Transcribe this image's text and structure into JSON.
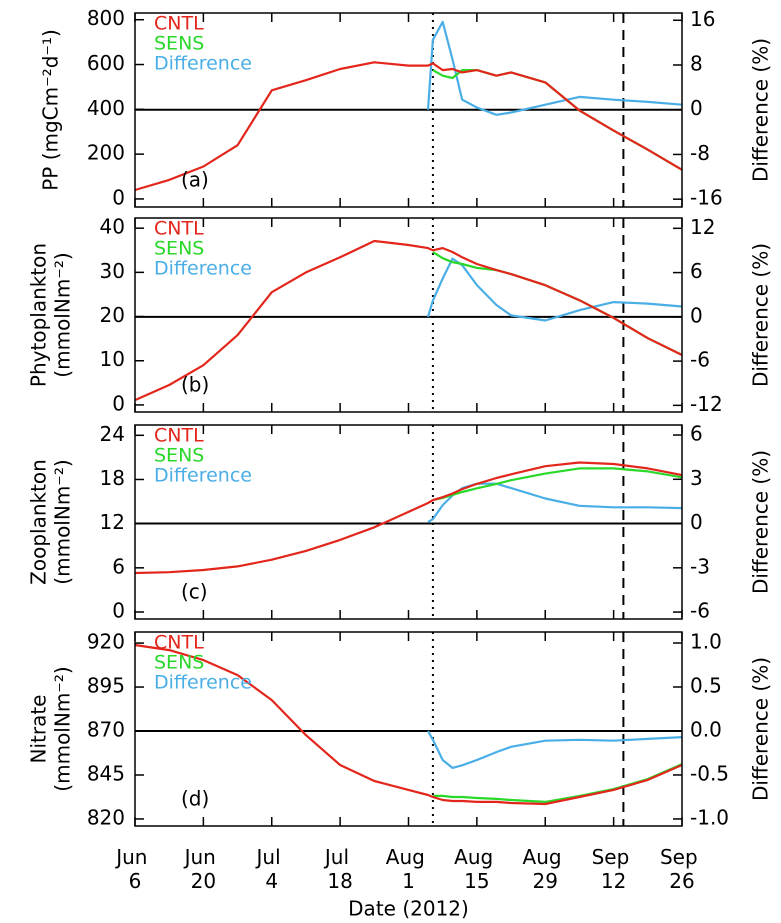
{
  "chart_data": [
    {
      "type": "line",
      "ylabel": [
        "PP (mgCm⁻²d⁻¹)"
      ],
      "y2label": "Difference (%)",
      "annotation": "(a)",
      "x": [
        "2012-06-06",
        "2012-06-13",
        "2012-06-20",
        "2012-06-27",
        "2012-07-04",
        "2012-07-11",
        "2012-07-18",
        "2012-07-25",
        "2012-08-01",
        "2012-08-05",
        "2012-08-06",
        "2012-08-08",
        "2012-08-10",
        "2012-08-12",
        "2012-08-15",
        "2012-08-19",
        "2012-08-22",
        "2012-08-29",
        "2012-09-05",
        "2012-09-12",
        "2012-09-19",
        "2012-09-26"
      ],
      "series": [
        {
          "name": "CNTL",
          "color": "#e3261b",
          "values": [
            40,
            85,
            145,
            240,
            485,
            530,
            580,
            610,
            595,
            595,
            605,
            575,
            580,
            565,
            575,
            550,
            565,
            520,
            395,
            305,
            220,
            130
          ]
        },
        {
          "name": "SENS",
          "color": "#2ad82a",
          "values": [
            null,
            null,
            null,
            null,
            null,
            null,
            null,
            null,
            null,
            null,
            575,
            550,
            540,
            575,
            575,
            550,
            565,
            520,
            395,
            305,
            220,
            130
          ]
        },
        {
          "name": "Difference",
          "color": "#4aaee6",
          "axis": "y2",
          "values": [
            null,
            null,
            null,
            null,
            null,
            null,
            null,
            null,
            null,
            0,
            12.5,
            15.7,
            9,
            1.8,
            0.4,
            -0.9,
            -0.5,
            0.9,
            2.3,
            1.8,
            1.4,
            0.9
          ]
        }
      ],
      "ylim": [
        -36,
        830
      ],
      "yticks": [
        0,
        200,
        400,
        600,
        800
      ],
      "y2lim": [
        -17.4,
        17.3
      ],
      "y2ticks": [
        -16,
        -8,
        0,
        8,
        16
      ],
      "hline": {
        "axis": "y2",
        "value": 0
      },
      "vlines": [
        {
          "x": "2012-08-06",
          "dash": "dotted"
        },
        {
          "x": "2012-09-14",
          "dash": "dashed"
        }
      ]
    },
    {
      "type": "line",
      "ylabel": [
        "Phytoplankton",
        "(mmolNm⁻²)"
      ],
      "y2label": "Difference (%)",
      "annotation": "(b)",
      "x": [
        "2012-06-06",
        "2012-06-13",
        "2012-06-20",
        "2012-06-27",
        "2012-07-04",
        "2012-07-11",
        "2012-07-18",
        "2012-07-25",
        "2012-08-01",
        "2012-08-05",
        "2012-08-06",
        "2012-08-08",
        "2012-08-10",
        "2012-08-12",
        "2012-08-15",
        "2012-08-19",
        "2012-08-22",
        "2012-08-29",
        "2012-09-05",
        "2012-09-12",
        "2012-09-19",
        "2012-09-26"
      ],
      "series": [
        {
          "name": "CNTL",
          "color": "#e3261b",
          "values": [
            1.1,
            4.5,
            9,
            15.8,
            25.5,
            30,
            33.4,
            37.1,
            36.2,
            35.5,
            35,
            35.5,
            34.6,
            33.4,
            31.9,
            30.5,
            29.6,
            27.1,
            23.7,
            19.7,
            15.1,
            11.3
          ]
        },
        {
          "name": "SENS",
          "color": "#2ad82a",
          "values": [
            null,
            null,
            null,
            null,
            null,
            null,
            null,
            null,
            null,
            null,
            34.6,
            33.2,
            32.3,
            31.9,
            31,
            30.5,
            29.6,
            27.1,
            23.7,
            19.7,
            15.1,
            11.3
          ]
        },
        {
          "name": "Difference",
          "color": "#4aaee6",
          "axis": "y2",
          "values": [
            null,
            null,
            null,
            null,
            null,
            null,
            null,
            null,
            null,
            0,
            2.2,
            5.2,
            7.9,
            7,
            4.3,
            1.6,
            0.2,
            -0.5,
            0.9,
            2,
            1.8,
            1.4
          ]
        }
      ],
      "ylim": [
        -1.6,
        42.3
      ],
      "yticks": [
        0,
        10,
        20,
        30,
        40
      ],
      "y2lim": [
        -12.9,
        13.4
      ],
      "y2ticks": [
        -12,
        -6,
        0,
        6,
        12
      ],
      "hline": {
        "axis": "y2",
        "value": 0
      },
      "vlines": [
        {
          "x": "2012-08-06",
          "dash": "dotted"
        },
        {
          "x": "2012-09-14",
          "dash": "dashed"
        }
      ]
    },
    {
      "type": "line",
      "ylabel": [
        "Zooplankton",
        "(mmolNm⁻²)"
      ],
      "y2label": "Difference (%)",
      "annotation": "(c)",
      "x": [
        "2012-06-06",
        "2012-06-13",
        "2012-06-20",
        "2012-06-27",
        "2012-07-04",
        "2012-07-11",
        "2012-07-18",
        "2012-07-25",
        "2012-08-01",
        "2012-08-05",
        "2012-08-06",
        "2012-08-08",
        "2012-08-10",
        "2012-08-12",
        "2012-08-15",
        "2012-08-19",
        "2012-08-22",
        "2012-08-29",
        "2012-09-05",
        "2012-09-12",
        "2012-09-19",
        "2012-09-26"
      ],
      "series": [
        {
          "name": "CNTL",
          "color": "#e3261b",
          "values": [
            5.3,
            5.4,
            5.7,
            6.2,
            7.1,
            8.3,
            9.8,
            11.5,
            13.6,
            14.8,
            15.2,
            15.6,
            16.1,
            16.7,
            17.4,
            18.2,
            18.7,
            19.8,
            20.3,
            20.1,
            19.5,
            18.6
          ]
        },
        {
          "name": "SENS",
          "color": "#2ad82a",
          "values": [
            null,
            null,
            null,
            null,
            null,
            null,
            null,
            null,
            null,
            null,
            15.2,
            15.5,
            15.9,
            16.3,
            16.8,
            17.4,
            17.9,
            18.8,
            19.5,
            19.5,
            19.1,
            18.3
          ]
        },
        {
          "name": "Difference",
          "color": "#4aaee6",
          "axis": "y2",
          "values": [
            null,
            null,
            null,
            null,
            null,
            null,
            null,
            null,
            null,
            0.1,
            0.3,
            1.25,
            1.9,
            2.4,
            2.7,
            2.7,
            2.4,
            1.7,
            1.2,
            1.1,
            1.1,
            1.05
          ]
        }
      ],
      "ylim": [
        -0.95,
        25.4
      ],
      "yticks": [
        0,
        6,
        12,
        18,
        24
      ],
      "y2lim": [
        -6.47,
        6.68
      ],
      "y2ticks": [
        -6,
        -3,
        0,
        3,
        6
      ],
      "hline": {
        "axis": "y2",
        "value": 0
      },
      "vlines": [
        {
          "x": "2012-08-06",
          "dash": "dotted"
        },
        {
          "x": "2012-09-14",
          "dash": "dashed"
        }
      ]
    },
    {
      "type": "line",
      "ylabel": [
        "Nitrate",
        "(mmolNm⁻²)"
      ],
      "y2label": "Difference (%)",
      "annotation": "(d)",
      "xlabel": "Date (2012)",
      "x": [
        "2012-06-06",
        "2012-06-13",
        "2012-06-20",
        "2012-06-27",
        "2012-07-04",
        "2012-07-11",
        "2012-07-18",
        "2012-07-25",
        "2012-08-01",
        "2012-08-05",
        "2012-08-06",
        "2012-08-08",
        "2012-08-10",
        "2012-08-12",
        "2012-08-15",
        "2012-08-19",
        "2012-08-22",
        "2012-08-29",
        "2012-09-05",
        "2012-09-12",
        "2012-09-19",
        "2012-09-26"
      ],
      "series": [
        {
          "name": "CNTL",
          "color": "#e3261b",
          "values": [
            918.9,
            916,
            910.3,
            901.8,
            887.6,
            867.7,
            850.7,
            841.6,
            836.5,
            833.6,
            832.5,
            830.8,
            830.2,
            830.2,
            829.7,
            829.7,
            829.1,
            828.5,
            832.5,
            836.5,
            842.2,
            850.7
          ]
        },
        {
          "name": "SENS",
          "color": "#2ad82a",
          "values": [
            null,
            null,
            null,
            null,
            null,
            null,
            null,
            null,
            null,
            null,
            833.1,
            833.1,
            832.5,
            832.5,
            831.9,
            831.4,
            830.8,
            829.7,
            833.1,
            837,
            842.7,
            851.2
          ]
        },
        {
          "name": "Difference",
          "color": "#4aaee6",
          "axis": "y2",
          "values": [
            null,
            null,
            null,
            null,
            null,
            null,
            null,
            null,
            null,
            0,
            -0.1,
            -0.33,
            -0.42,
            -0.39,
            -0.33,
            -0.24,
            -0.18,
            -0.11,
            -0.1,
            -0.11,
            -0.09,
            -0.07
          ]
        }
      ],
      "ylim": [
        816,
        926.3
      ],
      "yticks": [
        820,
        845,
        870,
        895,
        920
      ],
      "y2lim": [
        -1.08,
        1.125
      ],
      "y2ticks": [
        {
          "value": -1,
          "label": "-1.0"
        },
        -0.5,
        {
          "value": 0,
          "label": "0.0"
        },
        0.5,
        {
          "value": 1,
          "label": "1.0"
        }
      ],
      "hline": {
        "axis": "y2",
        "value": 0
      },
      "vlines": [
        {
          "x": "2012-08-06",
          "dash": "dotted"
        },
        {
          "x": "2012-09-14",
          "dash": "dashed"
        }
      ],
      "xlim": [
        "2012-06-06",
        "2012-09-26"
      ],
      "xticks": [
        {
          "value": "2012-06-06",
          "label": "Jun 6"
        },
        {
          "value": "2012-06-20",
          "label": "Jun 20"
        },
        {
          "value": "2012-07-04",
          "label": "Jul 4"
        },
        {
          "value": "2012-07-18",
          "label": "Jul 18"
        },
        {
          "value": "2012-08-01",
          "label": "Aug 1"
        },
        {
          "value": "2012-08-15",
          "label": "Aug 15"
        },
        {
          "value": "2012-08-29",
          "label": "Aug 29"
        },
        {
          "value": "2012-09-12",
          "label": "Sep 12"
        },
        {
          "value": "2012-09-26",
          "label": "Sep 26"
        }
      ]
    }
  ]
}
